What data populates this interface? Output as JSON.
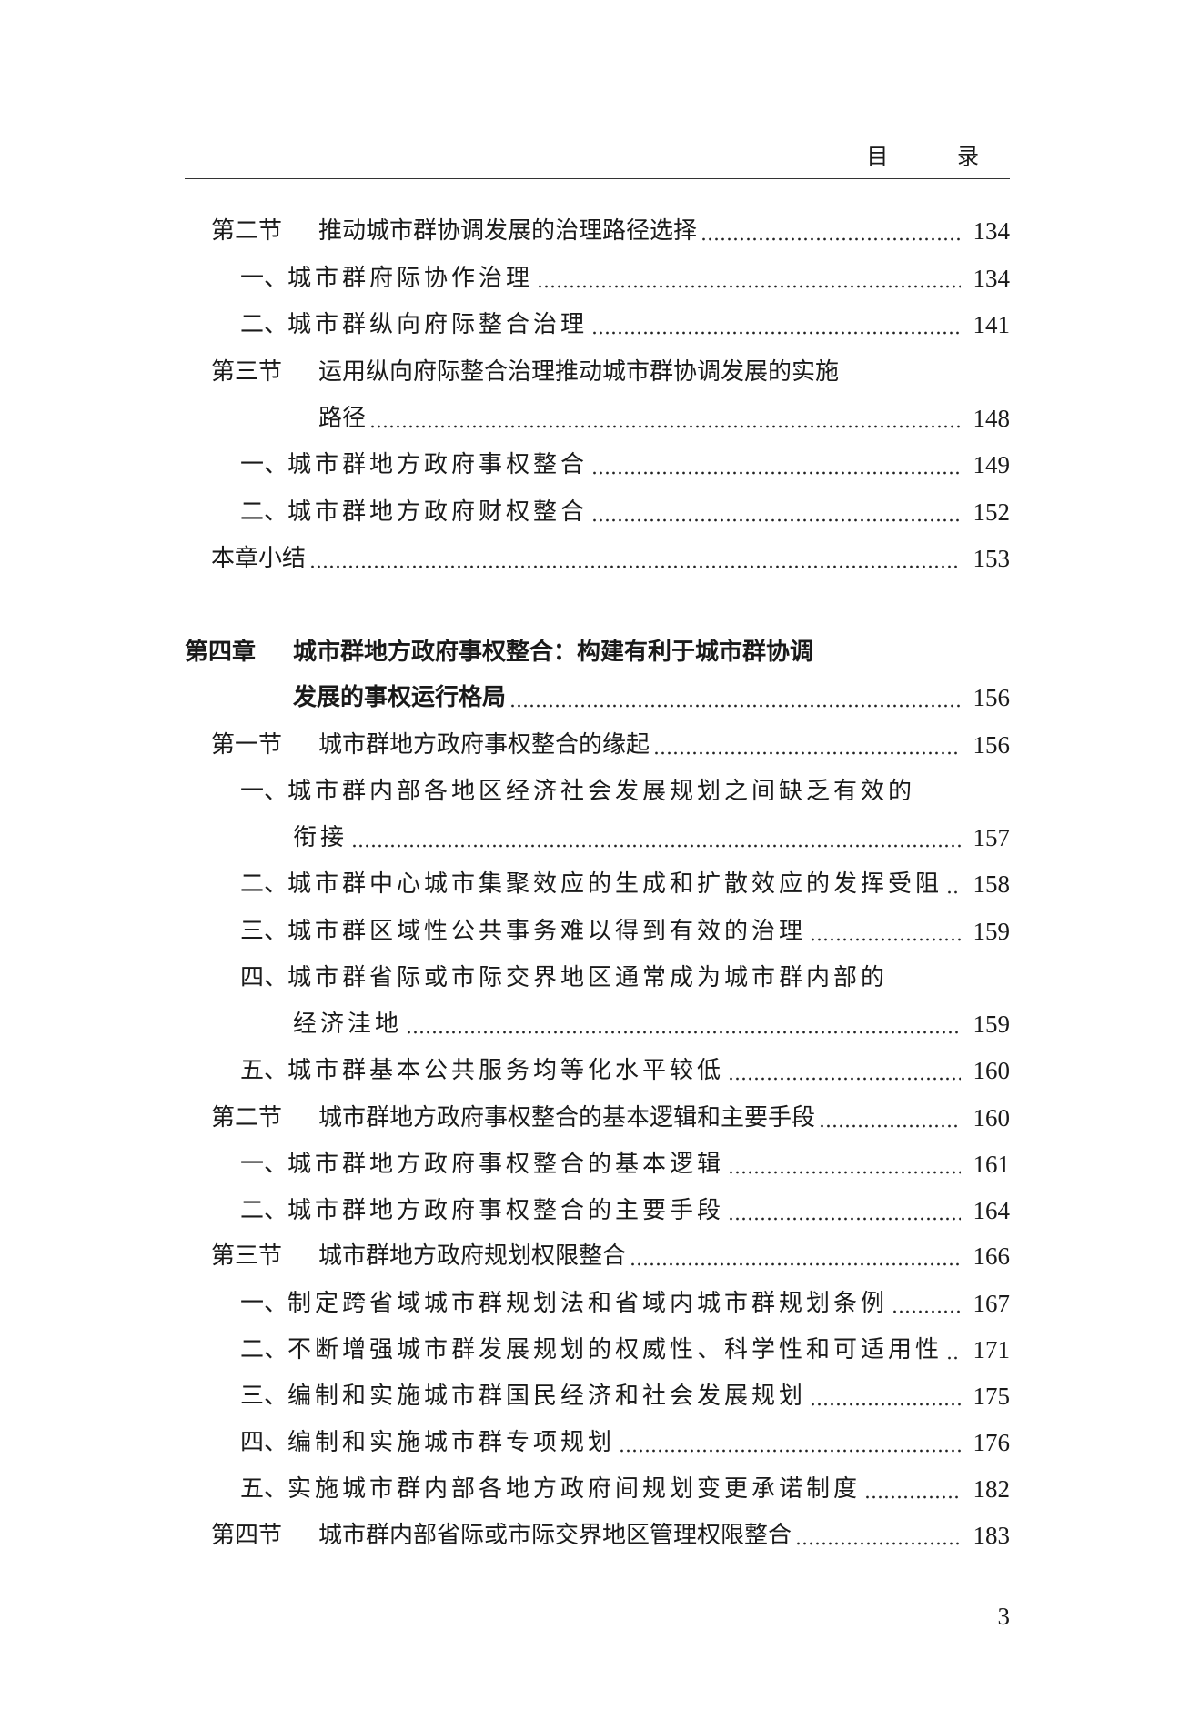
{
  "header": {
    "title": "目 录"
  },
  "page_number": "3",
  "entries": [
    {
      "level": "section",
      "label": "第二节",
      "title": "推动城市群协调发展的治理路径选择",
      "page": "134"
    },
    {
      "level": "item",
      "label": "一、",
      "title": "城市群府际协作治理",
      "page": "134"
    },
    {
      "level": "item",
      "label": "二、",
      "title": "城市群纵向府际整合治理",
      "page": "141"
    },
    {
      "level": "section",
      "label": "第三节",
      "title": "运用纵向府际整合治理推动城市群协调发展的实施",
      "title_cont": "路径",
      "page": "148"
    },
    {
      "level": "item",
      "label": "一、",
      "title": "城市群地方政府事权整合",
      "page": "149"
    },
    {
      "level": "item",
      "label": "二、",
      "title": "城市群地方政府财权整合",
      "page": "152"
    },
    {
      "level": "summary",
      "label": "",
      "title": "本章小结",
      "page": "153"
    },
    {
      "level": "chapter",
      "label": "第四章",
      "title": "城市群地方政府事权整合：构建有利于城市群协调",
      "title_cont": "发展的事权运行格局",
      "page": "156"
    },
    {
      "level": "section",
      "label": "第一节",
      "title": "城市群地方政府事权整合的缘起",
      "page": "156"
    },
    {
      "level": "item",
      "label": "一、",
      "title": "城市群内部各地区经济社会发展规划之间缺乏有效的",
      "title_cont": "衔接",
      "page": "157"
    },
    {
      "level": "item",
      "label": "二、",
      "title": "城市群中心城市集聚效应的生成和扩散效应的发挥受阻",
      "page": "158"
    },
    {
      "level": "item",
      "label": "三、",
      "title": "城市群区域性公共事务难以得到有效的治理",
      "page": "159"
    },
    {
      "level": "item",
      "label": "四、",
      "title": "城市群省际或市际交界地区通常成为城市群内部的",
      "title_cont": "经济洼地",
      "page": "159"
    },
    {
      "level": "item",
      "label": "五、",
      "title": "城市群基本公共服务均等化水平较低",
      "page": "160"
    },
    {
      "level": "section",
      "label": "第二节",
      "title": "城市群地方政府事权整合的基本逻辑和主要手段",
      "page": "160"
    },
    {
      "level": "item",
      "label": "一、",
      "title": "城市群地方政府事权整合的基本逻辑",
      "page": "161"
    },
    {
      "level": "item",
      "label": "二、",
      "title": "城市群地方政府事权整合的主要手段",
      "page": "164"
    },
    {
      "level": "section",
      "label": "第三节",
      "title": "城市群地方政府规划权限整合",
      "page": "166"
    },
    {
      "level": "item",
      "label": "一、",
      "title": "制定跨省域城市群规划法和省域内城市群规划条例",
      "page": "167"
    },
    {
      "level": "item",
      "label": "二、",
      "title": "不断增强城市群发展规划的权威性、科学性和可适用性",
      "page": "171"
    },
    {
      "level": "item",
      "label": "三、",
      "title": "编制和实施城市群国民经济和社会发展规划",
      "page": "175"
    },
    {
      "level": "item",
      "label": "四、",
      "title": "编制和实施城市群专项规划",
      "page": "176"
    },
    {
      "level": "item",
      "label": "五、",
      "title": "实施城市群内部各地方政府间规划变更承诺制度",
      "page": "182"
    },
    {
      "level": "section",
      "label": "第四节",
      "title": "城市群内部省际或市际交界地区管理权限整合",
      "page": "183"
    }
  ]
}
